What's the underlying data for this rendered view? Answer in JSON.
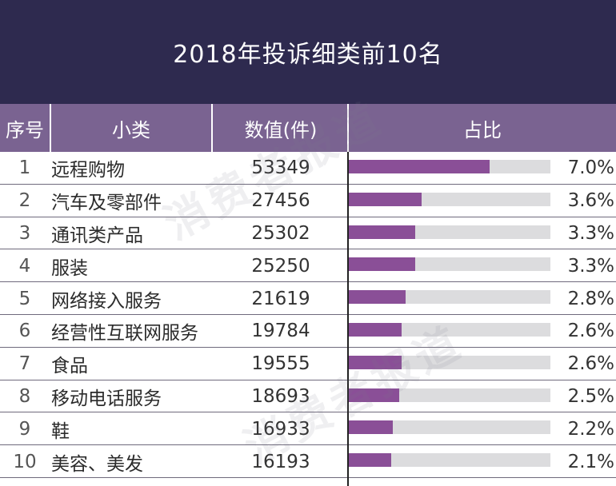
{
  "colors": {
    "title_bg": "#2e2a4f",
    "header_bg": "#7a6391",
    "bar_fill": "#8a4f97",
    "bar_track": "#dcdcde"
  },
  "chart_data": {
    "type": "table",
    "title": "2018年投诉细类前10名",
    "columns": [
      "序号",
      "小类",
      "数值(件)",
      "占比"
    ],
    "rows": [
      {
        "rank": "1",
        "name": "远程购物",
        "count": "53349",
        "share_label": "7.0%",
        "share": 7.0
      },
      {
        "rank": "2",
        "name": "汽车及零部件",
        "count": "27456",
        "share_label": "3.6%",
        "share": 3.6
      },
      {
        "rank": "3",
        "name": "通讯类产品",
        "count": "25302",
        "share_label": "3.3%",
        "share": 3.3
      },
      {
        "rank": "4",
        "name": "服装",
        "count": "25250",
        "share_label": "3.3%",
        "share": 3.3
      },
      {
        "rank": "5",
        "name": "网络接入服务",
        "count": "21619",
        "share_label": "2.8%",
        "share": 2.8
      },
      {
        "rank": "6",
        "name": "经营性互联网服务",
        "count": "19784",
        "share_label": "2.6%",
        "share": 2.6
      },
      {
        "rank": "7",
        "name": "食品",
        "count": "19555",
        "share_label": "2.6%",
        "share": 2.6
      },
      {
        "rank": "8",
        "name": "移动电话服务",
        "count": "18693",
        "share_label": "2.5%",
        "share": 2.5
      },
      {
        "rank": "9",
        "name": "鞋",
        "count": "16933",
        "share_label": "2.2%",
        "share": 2.2
      },
      {
        "rank": "10",
        "name": "美容、美发",
        "count": "16193",
        "share_label": "2.1%",
        "share": 2.1
      }
    ],
    "bar_scale_max": 10
  },
  "watermark": "消费者报道"
}
